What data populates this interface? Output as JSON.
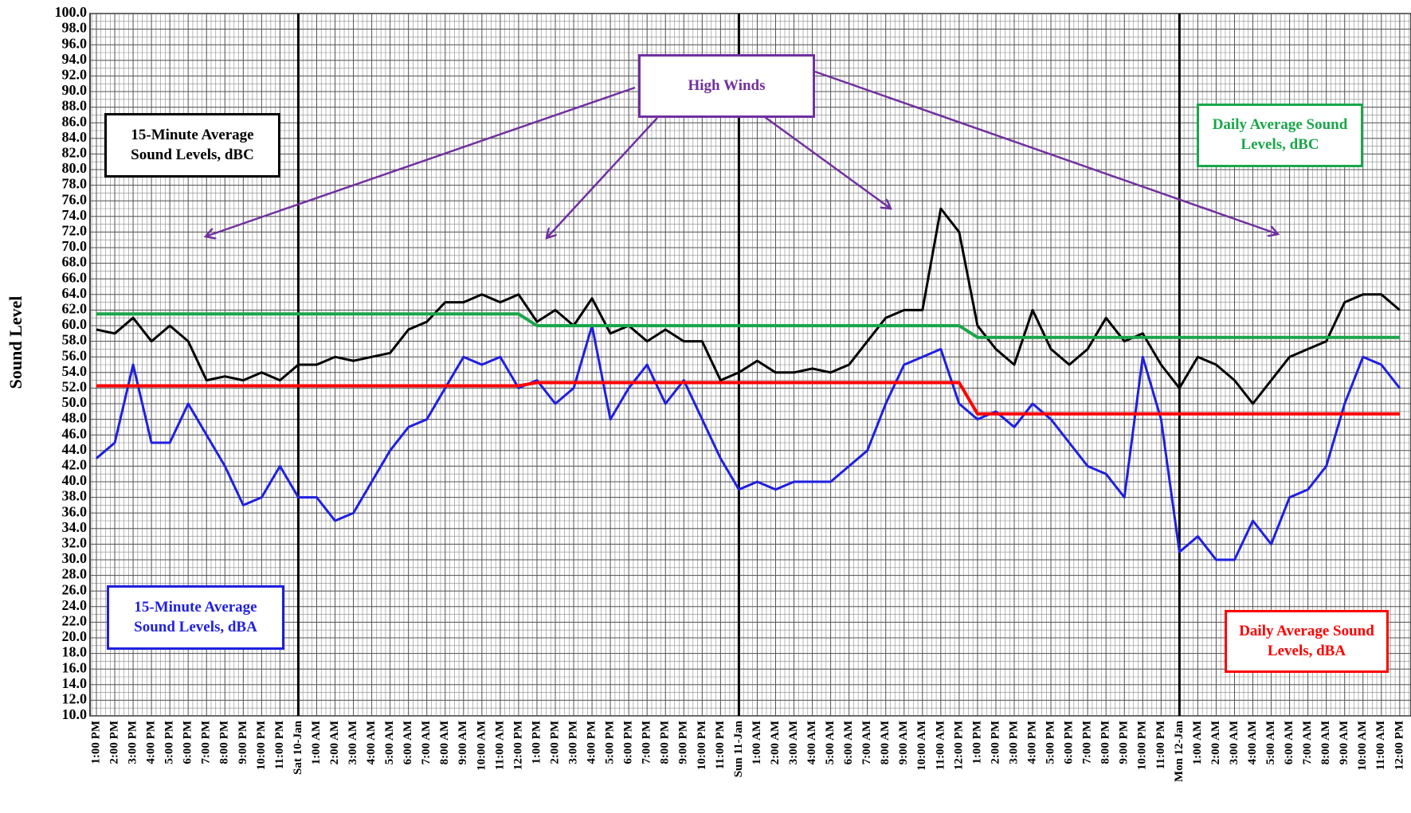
{
  "chart_data": {
    "type": "line",
    "y_label": "Sound Level",
    "annotation": "High Winds",
    "grid": true,
    "ylim": [
      10,
      100
    ],
    "yticks": [
      {
        "value": 10,
        "label": "10.0"
      },
      {
        "value": 12,
        "label": "12.0"
      },
      {
        "value": 14,
        "label": "14.0"
      },
      {
        "value": 16,
        "label": "16.0"
      },
      {
        "value": 18,
        "label": "18.0"
      },
      {
        "value": 20,
        "label": "20.0"
      },
      {
        "value": 22,
        "label": "22.0"
      },
      {
        "value": 24,
        "label": "24.0"
      },
      {
        "value": 26,
        "label": "26.0"
      },
      {
        "value": 28,
        "label": "28.0"
      },
      {
        "value": 30,
        "label": "30.0"
      },
      {
        "value": 32,
        "label": "32.0"
      },
      {
        "value": 34,
        "label": "34.0"
      },
      {
        "value": 36,
        "label": "36.0"
      },
      {
        "value": 38,
        "label": "38.0"
      },
      {
        "value": 40,
        "label": "40.0"
      },
      {
        "value": 42,
        "label": "42.0"
      },
      {
        "value": 44,
        "label": "44.0"
      },
      {
        "value": 46,
        "label": "46.0"
      },
      {
        "value": 48,
        "label": "48.0"
      },
      {
        "value": 50,
        "label": "50.0"
      },
      {
        "value": 52,
        "label": "52.0"
      },
      {
        "value": 54,
        "label": "54.0"
      },
      {
        "value": 56,
        "label": "56.0"
      },
      {
        "value": 58,
        "label": "58.0"
      },
      {
        "value": 60,
        "label": "60.0"
      },
      {
        "value": 62,
        "label": "62.0"
      },
      {
        "value": 64,
        "label": "64.0"
      },
      {
        "value": 66,
        "label": "66.0"
      },
      {
        "value": 68,
        "label": "68.0"
      },
      {
        "value": 70,
        "label": "70.0"
      },
      {
        "value": 72,
        "label": "72.0"
      },
      {
        "value": 74,
        "label": "74.0"
      },
      {
        "value": 76,
        "label": "76.0"
      },
      {
        "value": 78,
        "label": "78.0"
      },
      {
        "value": 80,
        "label": "80.0"
      },
      {
        "value": 82,
        "label": "82.0"
      },
      {
        "value": 84,
        "label": "84.0"
      },
      {
        "value": 86,
        "label": "86.0"
      },
      {
        "value": 88,
        "label": "88.0"
      },
      {
        "value": 90,
        "label": "90.0"
      },
      {
        "value": 92,
        "label": "92.0"
      },
      {
        "value": 94,
        "label": "94.0"
      },
      {
        "value": 96,
        "label": "96.0"
      },
      {
        "value": 98,
        "label": "98.0"
      },
      {
        "value": 100,
        "label": "100.0"
      }
    ],
    "categories": [
      "1:00 PM",
      "2:00 PM",
      "3:00 PM",
      "4:00 PM",
      "5:00 PM",
      "6:00 PM",
      "7:00 PM",
      "8:00 PM",
      "9:00 PM",
      "10:00 PM",
      "11:00 PM",
      "Sat 10-Jan",
      "1:00 AM",
      "2:00 AM",
      "3:00 AM",
      "4:00 AM",
      "5:00 AM",
      "6:00 AM",
      "7:00 AM",
      "8:00 AM",
      "9:00 AM",
      "10:00 AM",
      "11:00 AM",
      "12:00 PM",
      "1:00 PM",
      "2:00 PM",
      "3:00 PM",
      "4:00 PM",
      "5:00 PM",
      "6:00 PM",
      "7:00 PM",
      "8:00 PM",
      "9:00 PM",
      "10:00 PM",
      "11:00 PM",
      "Sun 11-Jan",
      "1:00 AM",
      "2:00 AM",
      "3:00 AM",
      "4:00 AM",
      "5:00 AM",
      "6:00 AM",
      "7:00 AM",
      "8:00 AM",
      "9:00 AM",
      "10:00 AM",
      "11:00 AM",
      "12:00 PM",
      "1:00 PM",
      "2:00 PM",
      "3:00 PM",
      "4:00 PM",
      "5:00 PM",
      "6:00 PM",
      "7:00 PM",
      "8:00 PM",
      "9:00 PM",
      "10:00 PM",
      "11:00 PM",
      "Mon 12-Jan",
      "1:00 AM",
      "2:00 AM",
      "3:00 AM",
      "4:00 AM",
      "5:00 AM",
      "6:00 AM",
      "7:00 AM",
      "8:00 AM",
      "9:00 AM",
      "10:00 AM",
      "11:00 AM",
      "12:00 PM"
    ],
    "series": [
      {
        "name": "15-Minute Average Sound Levels, dBC",
        "color": "#000000",
        "values": [
          59.5,
          59,
          61,
          58,
          60,
          58,
          53,
          53.5,
          53,
          54,
          53,
          55,
          55,
          56,
          55.5,
          56,
          56.5,
          59.5,
          60.5,
          63,
          63,
          64,
          63,
          64,
          60.5,
          62,
          60,
          63.5,
          59,
          60,
          58,
          59.5,
          58,
          58,
          53,
          54,
          55.5,
          54,
          54,
          54.5,
          54,
          55,
          58,
          61,
          62,
          62,
          75,
          72,
          60,
          57,
          55,
          62,
          57,
          55,
          57,
          61,
          58,
          59,
          55,
          52,
          56,
          55,
          53,
          50,
          53,
          56,
          57,
          58,
          63,
          64,
          64,
          62
        ]
      },
      {
        "name": "15-Minute Average Sound Levels, dBA",
        "color": "#1f1fe0",
        "values": [
          43,
          45,
          55,
          45,
          45,
          50,
          46,
          42,
          37,
          38,
          42,
          38,
          38,
          35,
          36,
          40,
          44,
          47,
          48,
          52,
          56,
          55,
          56,
          52,
          53,
          50,
          52,
          60,
          48,
          52,
          55,
          50,
          53,
          48,
          43,
          39,
          40,
          39,
          40,
          40,
          40,
          42,
          44,
          50,
          55,
          56,
          57,
          50,
          48,
          49,
          47,
          50,
          48,
          45,
          42,
          41,
          38,
          56,
          48,
          31,
          33,
          30,
          30,
          35,
          32,
          38,
          39,
          42,
          50,
          56,
          55,
          52
        ]
      },
      {
        "name": "Daily Average Sound Levels, dBC",
        "color": "#1aa64a",
        "values": [
          61.5,
          61.5,
          61.5,
          61.5,
          61.5,
          61.5,
          61.5,
          61.5,
          61.5,
          61.5,
          61.5,
          61.5,
          61.5,
          61.5,
          61.5,
          61.5,
          61.5,
          61.5,
          61.5,
          61.5,
          61.5,
          61.5,
          61.5,
          61.5,
          60,
          60,
          60,
          60,
          60,
          60,
          60,
          60,
          60,
          60,
          60,
          60,
          60,
          60,
          60,
          60,
          60,
          60,
          60,
          60,
          60,
          60,
          60,
          60,
          58.5,
          58.5,
          58.5,
          58.5,
          58.5,
          58.5,
          58.5,
          58.5,
          58.5,
          58.5,
          58.5,
          58.5,
          58.5,
          58.5,
          58.5,
          58.5,
          58.5,
          58.5,
          58.5,
          58.5,
          58.5,
          58.5,
          58.5,
          58.5
        ]
      },
      {
        "name": "Daily Average Sound Levels, dBA",
        "color": "#ff0000",
        "values": [
          52.3,
          52.3,
          52.3,
          52.3,
          52.3,
          52.3,
          52.3,
          52.3,
          52.3,
          52.3,
          52.3,
          52.3,
          52.3,
          52.3,
          52.3,
          52.3,
          52.3,
          52.3,
          52.3,
          52.3,
          52.3,
          52.3,
          52.3,
          52.3,
          52.7,
          52.7,
          52.7,
          52.7,
          52.7,
          52.7,
          52.7,
          52.7,
          52.7,
          52.7,
          52.7,
          52.7,
          52.7,
          52.7,
          52.7,
          52.7,
          52.7,
          52.7,
          52.7,
          52.7,
          52.7,
          52.7,
          52.7,
          52.7,
          48.7,
          48.7,
          48.7,
          48.7,
          48.7,
          48.7,
          48.7,
          48.7,
          48.7,
          48.7,
          48.7,
          48.7,
          48.7,
          48.7,
          48.7,
          48.7,
          48.7,
          48.7,
          48.7,
          48.7,
          48.7,
          48.7,
          48.7,
          48.7
        ]
      }
    ]
  }
}
